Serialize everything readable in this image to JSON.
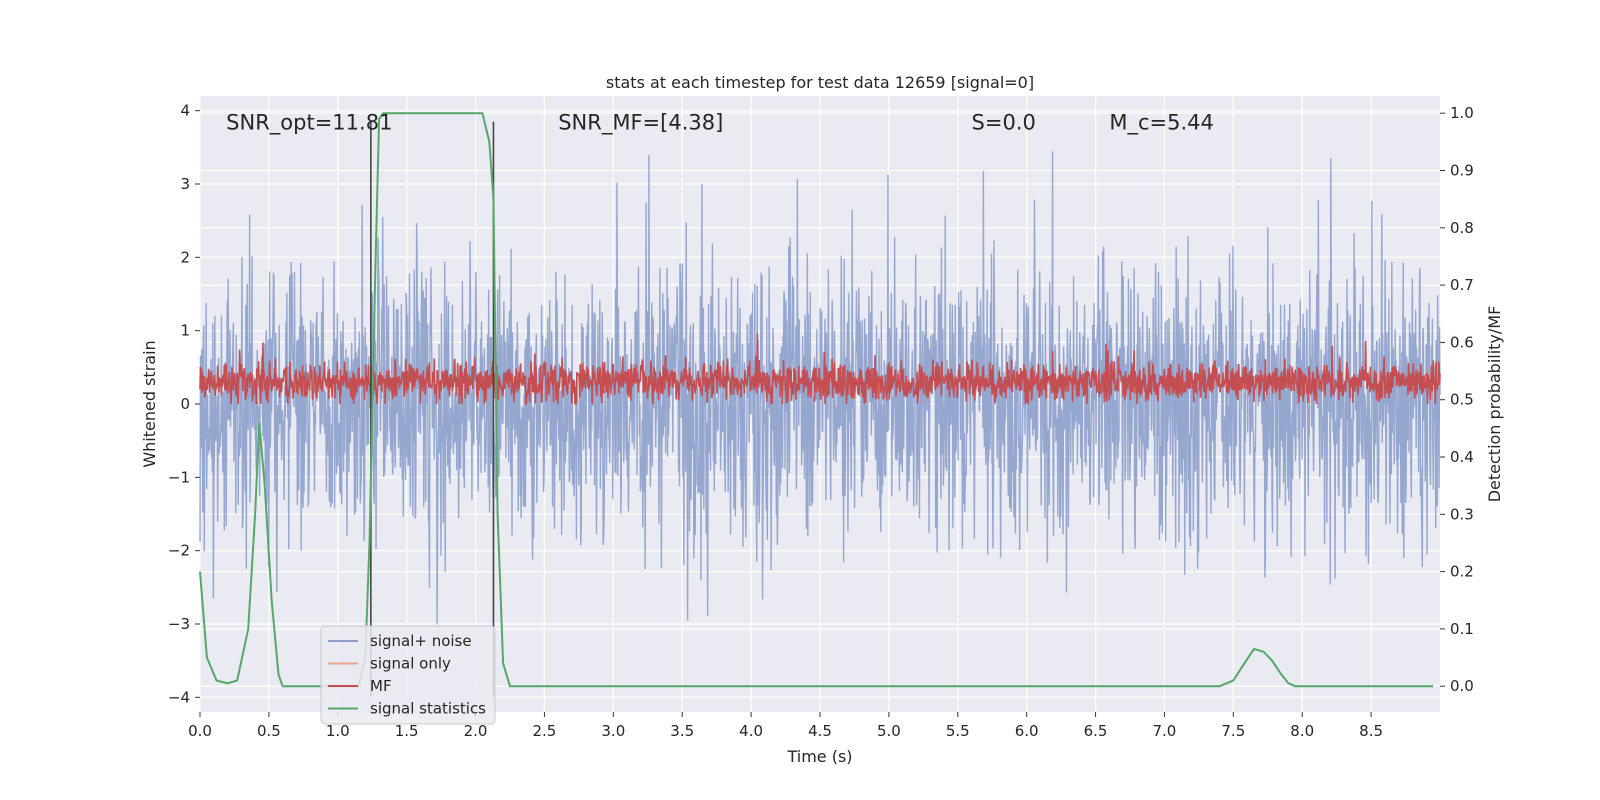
{
  "chart_data": {
    "type": "line",
    "title": "stats at each timestep for test data 12659 [signal=0]",
    "xlabel": "Time (s)",
    "ylabel_left": "Whitened strain",
    "ylabel_right": "Detection probability/MF",
    "xlim": [
      0.0,
      9.0
    ],
    "ylim_left": [
      -4.2,
      4.2
    ],
    "ylim_right": [
      -0.045,
      1.03
    ],
    "x_ticks": [
      "0.0",
      "0.5",
      "1.0",
      "1.5",
      "2.0",
      "2.5",
      "3.0",
      "3.5",
      "4.0",
      "4.5",
      "5.0",
      "5.5",
      "6.0",
      "6.5",
      "7.0",
      "7.5",
      "8.0",
      "8.5"
    ],
    "y_left_ticks": [
      "4",
      "3",
      "2",
      "1",
      "0",
      "−1",
      "−2",
      "−3",
      "−4"
    ],
    "y_right_ticks": [
      "1.0",
      "0.9",
      "0.8",
      "0.7",
      "0.6",
      "0.5",
      "0.4",
      "0.3",
      "0.2",
      "0.1",
      "0.0"
    ],
    "grid": true,
    "legend_placement": "lower-left",
    "annotations": [
      {
        "key": "snr-opt",
        "text": "SNR_opt=11.81",
        "x": 0.19,
        "y": 3.85
      },
      {
        "key": "snr-mf",
        "text": "SNR_MF=[4.38]",
        "x": 2.6,
        "y": 3.85
      },
      {
        "key": "s-value",
        "text": "S=0.0",
        "x": 5.6,
        "y": 3.85
      },
      {
        "key": "mc-value",
        "text": "M_c=5.44",
        "x": 6.6,
        "y": 3.85
      }
    ],
    "vertical_lines": [
      1.24,
      2.13
    ],
    "series": [
      {
        "name": "signal+ noise",
        "color": "#8da0cb",
        "axis": "left",
        "description": "noise-dominated whitened strain, amplitude mostly within [-2.5, 2.5] with spikes to about 3.8 and -3.7"
      },
      {
        "name": "signal only",
        "color": "#e9a58a",
        "axis": "left",
        "values": []
      },
      {
        "name": "MF",
        "color": "#c44e52",
        "axis": "left",
        "description": "matched filter output fluctuating between about 0.0 and 0.7, occasional peaks near 1.0"
      },
      {
        "name": "signal statistics",
        "color": "#55a868",
        "axis": "right",
        "x": [
          0.0,
          0.05,
          0.12,
          0.2,
          0.27,
          0.35,
          0.4,
          0.43,
          0.47,
          0.52,
          0.57,
          0.6,
          0.8,
          1.0,
          1.15,
          1.2,
          1.23,
          1.27,
          1.3,
          1.33,
          1.5,
          1.8,
          2.0,
          2.05,
          2.1,
          2.13,
          2.16,
          2.2,
          2.25,
          3.0,
          5.0,
          7.0,
          7.4,
          7.5,
          7.58,
          7.65,
          7.72,
          7.78,
          7.85,
          7.9,
          7.95,
          8.0,
          8.5,
          8.95
        ],
        "values": [
          0.2,
          0.05,
          0.01,
          0.005,
          0.01,
          0.1,
          0.3,
          0.46,
          0.35,
          0.15,
          0.02,
          0.0,
          0.0,
          0.0,
          0.0,
          0.05,
          0.25,
          0.7,
          0.99,
          1.0,
          1.0,
          1.0,
          1.0,
          1.0,
          0.95,
          0.85,
          0.3,
          0.04,
          0.0,
          0.0,
          0.0,
          0.0,
          0.0,
          0.01,
          0.04,
          0.065,
          0.06,
          0.045,
          0.02,
          0.005,
          0.0,
          0.0,
          0.0,
          0.0
        ]
      }
    ]
  }
}
